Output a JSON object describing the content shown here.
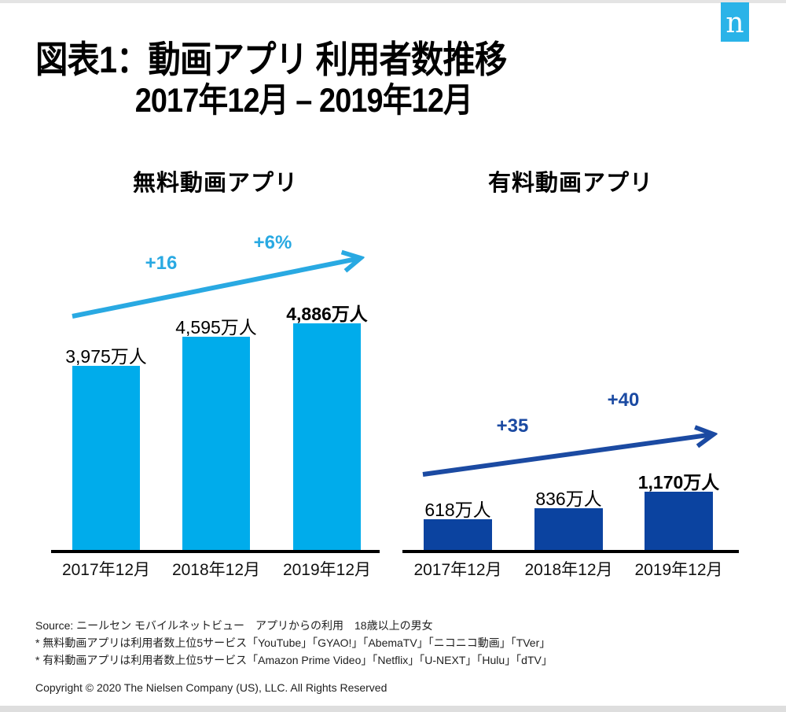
{
  "page": {
    "top_strip_color": "#e4e4e4",
    "bottom_strip_color": "#dedede"
  },
  "logo": {
    "letter": "n",
    "color": "#2ab3e8"
  },
  "title": {
    "line1": "図表1：動画アプリ 利用者数推移",
    "line2": "2017年12月 – 2019年12月"
  },
  "chart_data": [
    {
      "type": "bar",
      "title": "無料動画アプリ",
      "categories": [
        "2017年12月",
        "2018年12月",
        "2019年12月"
      ],
      "values": [
        3975,
        4595,
        4886
      ],
      "value_labels": [
        "3,975万人",
        "4,595万人",
        "4,886万人"
      ],
      "bold_label_index": 2,
      "unit": "万人",
      "ylim": [
        0,
        4886
      ],
      "grid": false,
      "legend": "none",
      "bar_color": "#00aceb",
      "arrow_color": "#29a9e2",
      "annotations": [
        "+16",
        "+6%"
      ]
    },
    {
      "type": "bar",
      "title": "有料動画アプリ",
      "categories": [
        "2017年12月",
        "2018年12月",
        "2019年12月"
      ],
      "values": [
        618,
        836,
        1170
      ],
      "value_labels": [
        "618万人",
        "836万人",
        "1,170万人"
      ],
      "bold_label_index": 2,
      "unit": "万人",
      "ylim": [
        0,
        1170
      ],
      "grid": false,
      "legend": "none",
      "bar_color": "#0b43a0",
      "arrow_color": "#1b4aa2",
      "annotations": [
        "+35",
        "+40"
      ]
    }
  ],
  "footer": {
    "source_line": "Source: ニールセン モバイルネットビュー　アプリからの利用　18歳以上の男女",
    "note_free": "* 無料動画アプリは利用者数上位5サービス「YouTube」「GYAO!」「AbemaTV」「ニコニコ動画」「TVer」",
    "note_paid": "* 有料動画アプリは利用者数上位5サービス「Amazon Prime Video」「Netflix」「U-NEXT」「Hulu」「dTV」",
    "copyright": "Copyright © 2020 The Nielsen Company (US), LLC. All Rights Reserved"
  }
}
